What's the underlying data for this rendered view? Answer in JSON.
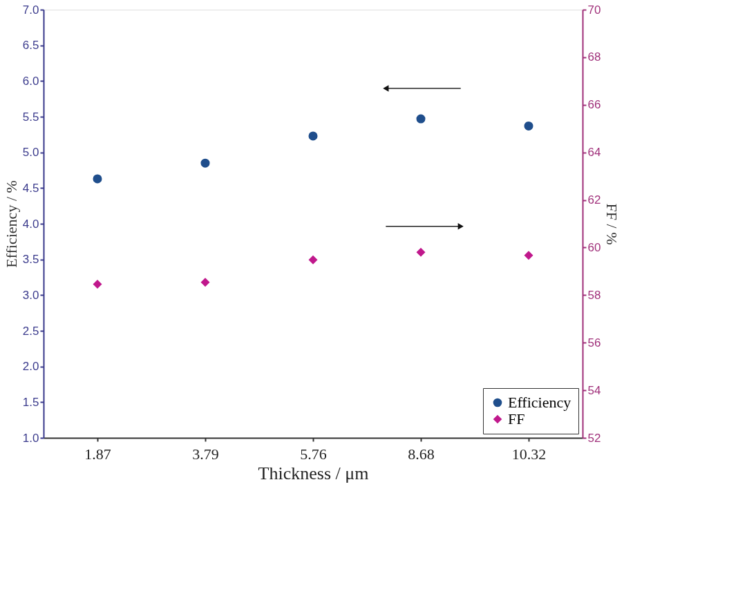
{
  "chart_data": {
    "type": "scatter",
    "xlabel": "Thickness / μm",
    "ylabel": "Efficiency / %",
    "y2label": "FF / %",
    "categories": [
      "1.87",
      "3.79",
      "5.76",
      "8.68",
      "10.32"
    ],
    "series": [
      {
        "name": "Efficiency",
        "color": "#1f4e8c",
        "marker": "circle",
        "values": [
          4.63,
          4.85,
          5.23,
          5.47,
          5.37
        ]
      },
      {
        "name": "FF",
        "color": "#c0188c",
        "marker": "diamond",
        "axis": "y2",
        "values": [
          58.46,
          58.54,
          59.48,
          59.8,
          59.67
        ]
      }
    ],
    "ylim": [
      1.0,
      7.0
    ],
    "yticks": [
      {
        "value": 1,
        "label": "1.0"
      },
      1.5,
      {
        "value": 2,
        "label": "2.0"
      },
      2.5,
      {
        "value": 3,
        "label": "3.0"
      },
      3.5,
      {
        "value": 4,
        "label": "4.0"
      },
      4.5,
      {
        "value": 5,
        "label": "5.0"
      },
      5.5,
      {
        "value": 6,
        "label": "6.0"
      },
      6.5,
      {
        "value": 7,
        "label": "7.0"
      }
    ],
    "y2lim": [
      52,
      70
    ],
    "y2ticks": [
      52,
      54,
      56,
      58,
      60,
      62,
      64,
      66,
      68,
      70
    ],
    "grid": false,
    "legend": "bottom right"
  }
}
